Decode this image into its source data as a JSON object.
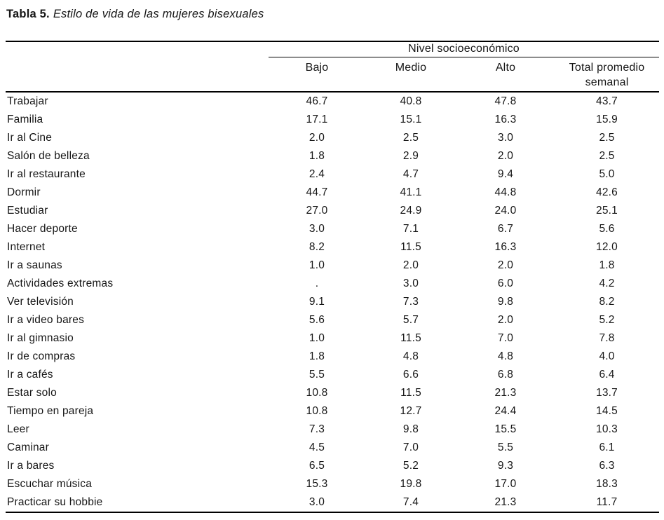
{
  "title": {
    "label": "Tabla 5.",
    "text": "Estilo de vida de las mujeres bisexuales"
  },
  "table": {
    "spanner": "Nivel socioeconómico",
    "columns": [
      "Bajo",
      "Medio",
      "Alto",
      "Total promedio semanal"
    ],
    "rows": [
      {
        "label": "Trabajar",
        "values": [
          "46.7",
          "40.8",
          "47.8",
          "43.7"
        ]
      },
      {
        "label": "Familia",
        "values": [
          "17.1",
          "15.1",
          "16.3",
          "15.9"
        ]
      },
      {
        "label": "Ir al Cine",
        "values": [
          "2.0",
          "2.5",
          "3.0",
          "2.5"
        ]
      },
      {
        "label": "Salón de belleza",
        "values": [
          "1.8",
          "2.9",
          "2.0",
          "2.5"
        ]
      },
      {
        "label": "Ir al restaurante",
        "values": [
          "2.4",
          "4.7",
          "9.4",
          "5.0"
        ]
      },
      {
        "label": "Dormir",
        "values": [
          "44.7",
          "41.1",
          "44.8",
          "42.6"
        ]
      },
      {
        "label": "Estudiar",
        "values": [
          "27.0",
          "24.9",
          "24.0",
          "25.1"
        ]
      },
      {
        "label": "Hacer deporte",
        "values": [
          "3.0",
          "7.1",
          "6.7",
          "5.6"
        ]
      },
      {
        "label": "Internet",
        "values": [
          "8.2",
          "11.5",
          "16.3",
          "12.0"
        ]
      },
      {
        "label": "Ir a saunas",
        "values": [
          "1.0",
          "2.0",
          "2.0",
          "1.8"
        ]
      },
      {
        "label": "Actividades extremas",
        "values": [
          ".",
          "3.0",
          "6.0",
          "4.2"
        ]
      },
      {
        "label": "Ver televisión",
        "values": [
          "9.1",
          "7.3",
          "9.8",
          "8.2"
        ]
      },
      {
        "label": "Ir a video bares",
        "values": [
          "5.6",
          "5.7",
          "2.0",
          "5.2"
        ]
      },
      {
        "label": "Ir al gimnasio",
        "values": [
          "1.0",
          "11.5",
          "7.0",
          "7.8"
        ]
      },
      {
        "label": "Ir de compras",
        "values": [
          "1.8",
          "4.8",
          "4.8",
          "4.0"
        ]
      },
      {
        "label": "Ir a cafés",
        "values": [
          "5.5",
          "6.6",
          "6.8",
          "6.4"
        ]
      },
      {
        "label": "Estar solo",
        "values": [
          "10.8",
          "11.5",
          "21.3",
          "13.7"
        ]
      },
      {
        "label": "Tiempo en pareja",
        "values": [
          "10.8",
          "12.7",
          "24.4",
          "14.5"
        ]
      },
      {
        "label": "Leer",
        "values": [
          "7.3",
          "9.8",
          "15.5",
          "10.3"
        ]
      },
      {
        "label": "Caminar",
        "values": [
          "4.5",
          "7.0",
          "5.5",
          "6.1"
        ]
      },
      {
        "label": "Ir a bares",
        "values": [
          "6.5",
          "5.2",
          "9.3",
          "6.3"
        ]
      },
      {
        "label": "Escuchar música",
        "values": [
          "15.3",
          "19.8",
          "17.0",
          "18.3"
        ]
      },
      {
        "label": "Practicar su hobbie",
        "values": [
          "3.0",
          "7.4",
          "21.3",
          "11.7"
        ]
      }
    ]
  },
  "colors": {
    "background": "#ffffff",
    "text": "#161616",
    "rule": "#000000"
  }
}
